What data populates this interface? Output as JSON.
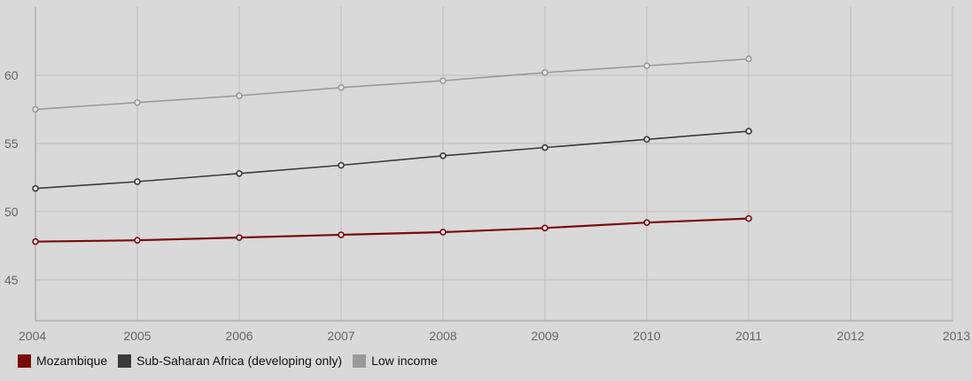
{
  "chart_data": {
    "type": "line",
    "title": "",
    "xlabel": "",
    "ylabel": "",
    "x": [
      2004,
      2005,
      2006,
      2007,
      2008,
      2009,
      2010,
      2011
    ],
    "xlim": [
      2004,
      2013
    ],
    "ylim": [
      42,
      65
    ],
    "x_ticks": [
      "2004",
      "2005",
      "2006",
      "2007",
      "2008",
      "2009",
      "2010",
      "2011",
      "2012",
      "2013"
    ],
    "y_ticks": [
      "45",
      "50",
      "55",
      "60"
    ],
    "grid": true,
    "legend_position": "bottom-left",
    "series": [
      {
        "name": "Mozambique",
        "color": "#7a0a0a",
        "values": [
          47.8,
          47.9,
          48.1,
          48.3,
          48.5,
          48.8,
          49.2,
          49.5
        ]
      },
      {
        "name": "Sub-Saharan Africa (developing only)",
        "color": "#3a3a3a",
        "values": [
          51.7,
          52.2,
          52.8,
          53.4,
          54.1,
          54.7,
          55.3,
          55.9
        ]
      },
      {
        "name": "Low income",
        "color": "#9a9a9a",
        "values": [
          57.5,
          58.0,
          58.5,
          59.1,
          59.6,
          60.2,
          60.7,
          61.2
        ]
      }
    ]
  }
}
